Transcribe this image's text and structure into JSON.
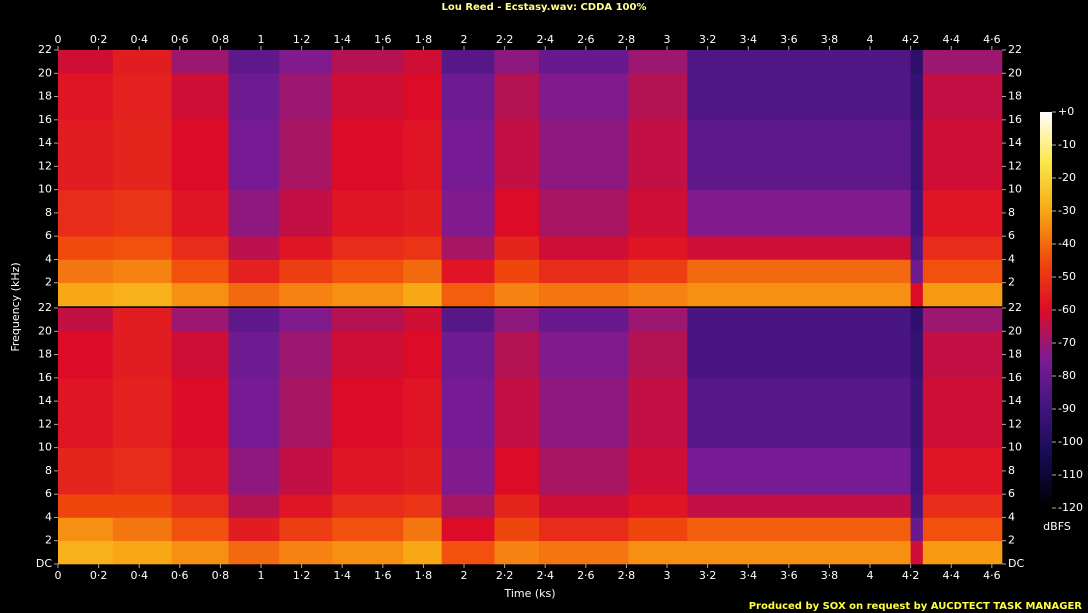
{
  "chart_data": {
    "type": "spectrogram",
    "title": "Lou Reed - Ecstasy.wav: CDDA 100%",
    "x_label": "Time (ks)",
    "y_label": "Frequency (kHz)",
    "colorbar_label": "dBFS",
    "footer": "Produced by SOX on request by AUCDTECT TASK MANAGER",
    "time_edges": [
      0,
      0.27,
      0.56,
      0.84,
      1.09,
      1.35,
      1.7,
      1.89,
      2.15,
      2.37,
      2.81,
      3.1,
      4.2,
      4.26,
      4.65
    ],
    "freq_edges": [
      0,
      2,
      4,
      6,
      10,
      16,
      20,
      22
    ],
    "channels": [
      {
        "values": [
          [
            -30,
            -38,
            -45,
            -52,
            -56,
            -58,
            -62
          ],
          [
            -28,
            -36,
            -44,
            -50,
            -54,
            -55,
            -56
          ],
          [
            -34,
            -44,
            -52,
            -58,
            -60,
            -62,
            -70
          ],
          [
            -40,
            -55,
            -65,
            -72,
            -76,
            -78,
            -82
          ],
          [
            -36,
            -48,
            -58,
            -64,
            -68,
            -70,
            -74
          ],
          [
            -34,
            -44,
            -52,
            -58,
            -60,
            -62,
            -66
          ],
          [
            -30,
            -40,
            -50,
            -56,
            -58,
            -60,
            -62
          ],
          [
            -42,
            -58,
            -68,
            -74,
            -76,
            -78,
            -84
          ],
          [
            -36,
            -46,
            -54,
            -60,
            -64,
            -66,
            -72
          ],
          [
            -38,
            -52,
            -62,
            -68,
            -72,
            -74,
            -80
          ],
          [
            -36,
            -48,
            -58,
            -62,
            -64,
            -66,
            -70
          ],
          [
            -34,
            -40,
            -62,
            -74,
            -82,
            -86,
            -86
          ],
          [
            -60,
            -78,
            -86,
            -90,
            -92,
            -94,
            -96
          ],
          [
            -32,
            -44,
            -52,
            -58,
            -62,
            -64,
            -70
          ]
        ]
      },
      {
        "values": [
          [
            -28,
            -34,
            -46,
            -54,
            -58,
            -60,
            -64
          ],
          [
            -30,
            -38,
            -46,
            -52,
            -55,
            -56,
            -56
          ],
          [
            -34,
            -44,
            -52,
            -58,
            -60,
            -62,
            -70
          ],
          [
            -40,
            -56,
            -66,
            -72,
            -76,
            -78,
            -82
          ],
          [
            -36,
            -48,
            -58,
            -64,
            -68,
            -70,
            -74
          ],
          [
            -34,
            -44,
            -52,
            -58,
            -60,
            -62,
            -66
          ],
          [
            -30,
            -38,
            -50,
            -56,
            -58,
            -60,
            -62
          ],
          [
            -44,
            -60,
            -68,
            -74,
            -76,
            -78,
            -84
          ],
          [
            -36,
            -46,
            -54,
            -60,
            -64,
            -66,
            -72
          ],
          [
            -38,
            -52,
            -62,
            -68,
            -72,
            -74,
            -80
          ],
          [
            -34,
            -46,
            -58,
            -62,
            -64,
            -66,
            -70
          ],
          [
            -34,
            -42,
            -64,
            -76,
            -84,
            -88,
            -88
          ],
          [
            -62,
            -80,
            -88,
            -90,
            -92,
            -94,
            -96
          ],
          [
            -32,
            -44,
            -52,
            -58,
            -62,
            -64,
            -70
          ]
        ]
      }
    ],
    "xlim": [
      0,
      4.65
    ],
    "xticks": [
      0,
      {
        "value": 0.2,
        "label": "0·2"
      },
      {
        "value": 0.4,
        "label": "0·4"
      },
      {
        "value": 0.6,
        "label": "0·6"
      },
      {
        "value": 0.8,
        "label": "0·8"
      },
      1,
      {
        "value": 1.2,
        "label": "1·2"
      },
      {
        "value": 1.4,
        "label": "1·4"
      },
      {
        "value": 1.6,
        "label": "1·6"
      },
      {
        "value": 1.8,
        "label": "1·8"
      },
      2,
      {
        "value": 2.2,
        "label": "2·2"
      },
      {
        "value": 2.4,
        "label": "2·4"
      },
      {
        "value": 2.6,
        "label": "2·6"
      },
      {
        "value": 2.8,
        "label": "2·8"
      },
      3,
      {
        "value": 3.2,
        "label": "3·2"
      },
      {
        "value": 3.4,
        "label": "3·4"
      },
      {
        "value": 3.6,
        "label": "3·6"
      },
      {
        "value": 3.8,
        "label": "3·8"
      },
      4,
      {
        "value": 4.2,
        "label": "4·2"
      },
      {
        "value": 4.4,
        "label": "4·4"
      },
      {
        "value": 4.6,
        "label": "4·6"
      }
    ],
    "ylim": [
      0,
      22
    ],
    "yticks": [
      {
        "value": 0,
        "label": "DC"
      },
      2,
      4,
      6,
      8,
      10,
      12,
      14,
      16,
      18,
      20,
      22
    ],
    "clim": [
      -120,
      0
    ],
    "cticks": [
      {
        "value": 0,
        "label": "+0"
      },
      -10,
      -20,
      -30,
      -40,
      -50,
      -60,
      -70,
      -80,
      -90,
      -100,
      -110,
      -120
    ],
    "colormap": [
      "#000000",
      "#140a50",
      "#40147e",
      "#7a1c94",
      "#dc0c28",
      "#f04a0c",
      "#f8a814",
      "#fbe84a",
      "#ffffff"
    ]
  }
}
